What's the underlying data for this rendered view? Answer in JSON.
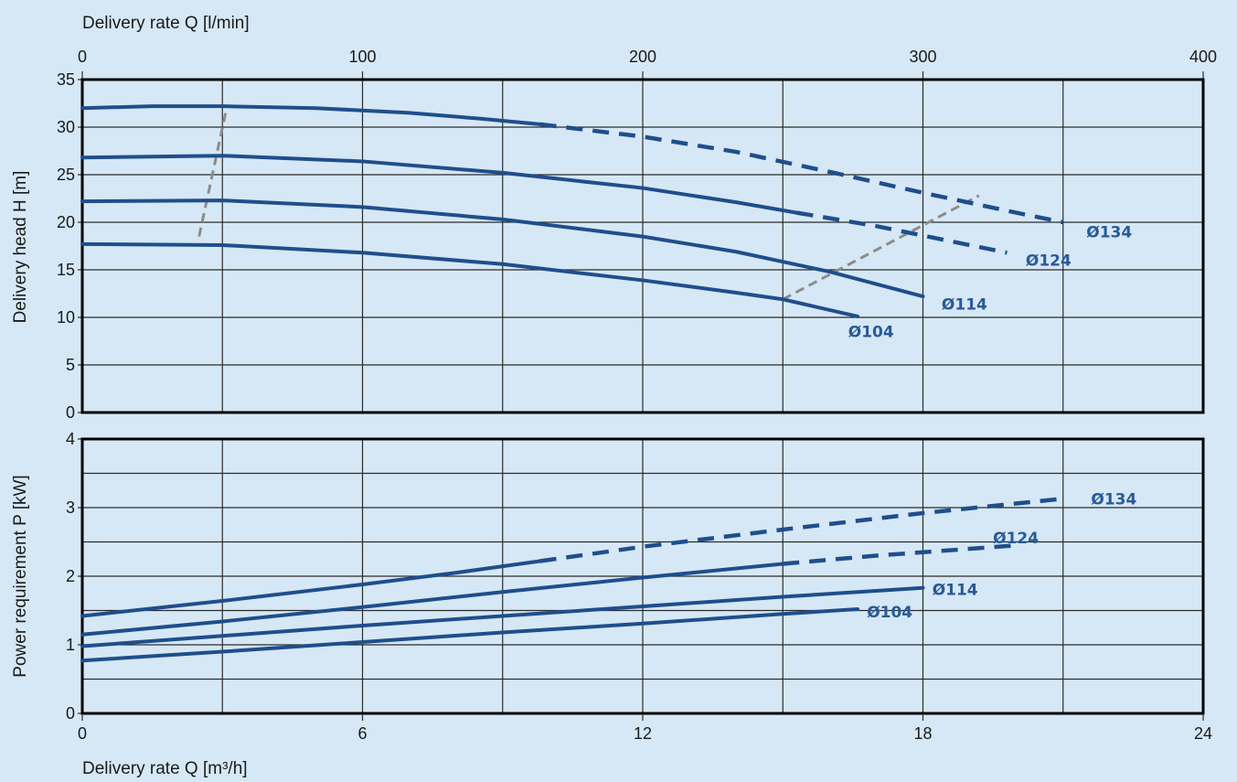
{
  "chart_data": [
    {
      "id": "head",
      "type": "line",
      "ylabel": "Delivery head  H [m]",
      "ylim": [
        0,
        35
      ],
      "yticks": [
        "0",
        "5",
        "10",
        "15",
        "20",
        "25",
        "30",
        "35"
      ],
      "xlim_m3h": [
        0,
        24
      ],
      "series": [
        {
          "name": "Ø134",
          "solid": [
            [
              0,
              32.0
            ],
            [
              1.5,
              32.2
            ],
            [
              3,
              32.2
            ],
            [
              5,
              32.0
            ],
            [
              7,
              31.5
            ],
            [
              8.5,
              30.9
            ],
            [
              9.8,
              30.3
            ]
          ],
          "dashed": [
            [
              9.8,
              30.3
            ],
            [
              12,
              29.0
            ],
            [
              14,
              27.4
            ],
            [
              16,
              25.3
            ],
            [
              18,
              23.1
            ],
            [
              20,
              21.0
            ],
            [
              21,
              20.0
            ]
          ]
        },
        {
          "name": "Ø124",
          "solid": [
            [
              0,
              26.8
            ],
            [
              3,
              27.0
            ],
            [
              6,
              26.4
            ],
            [
              9,
              25.2
            ],
            [
              12,
              23.6
            ],
            [
              14,
              22.1
            ],
            [
              15.3,
              21.0
            ]
          ],
          "dashed": [
            [
              15.3,
              21.0
            ],
            [
              17,
              19.6
            ],
            [
              18.5,
              18.1
            ],
            [
              19.8,
              16.8
            ]
          ]
        },
        {
          "name": "Ø114",
          "solid": [
            [
              0,
              22.2
            ],
            [
              3,
              22.3
            ],
            [
              6,
              21.6
            ],
            [
              9,
              20.3
            ],
            [
              12,
              18.5
            ],
            [
              14,
              16.9
            ],
            [
              16,
              14.8
            ],
            [
              18,
              12.2
            ]
          ],
          "dashed": []
        },
        {
          "name": "Ø104",
          "solid": [
            [
              0,
              17.7
            ],
            [
              3,
              17.6
            ],
            [
              6,
              16.8
            ],
            [
              9,
              15.6
            ],
            [
              12,
              13.9
            ],
            [
              14,
              12.6
            ],
            [
              15,
              11.9
            ],
            [
              16.6,
              10.1
            ]
          ],
          "dashed": []
        }
      ],
      "reference_lines": [
        [
          [
            2.5,
            18.5
          ],
          [
            3.1,
            32.2
          ]
        ],
        [
          [
            15,
            11.9
          ],
          [
            19.2,
            22.8
          ]
        ]
      ],
      "labels": [
        {
          "text": "Ø134",
          "at": [
            21.5,
            19.0
          ]
        },
        {
          "text": "Ø124",
          "at": [
            20.2,
            16.0
          ]
        },
        {
          "text": "Ø114",
          "at": [
            18.4,
            11.4
          ]
        },
        {
          "text": "Ø104",
          "at": [
            16.4,
            8.5
          ]
        }
      ]
    },
    {
      "id": "power",
      "type": "line",
      "ylabel": "Power requirement  P [kW]",
      "ylim": [
        0,
        4
      ],
      "yticks": [
        "0",
        "1",
        "2",
        "3",
        "4"
      ],
      "xlim_m3h": [
        0,
        24
      ],
      "series": [
        {
          "name": "Ø134",
          "solid": [
            [
              0,
              1.42
            ],
            [
              3,
              1.64
            ],
            [
              6,
              1.88
            ],
            [
              8,
              2.05
            ],
            [
              9.8,
              2.22
            ]
          ],
          "dashed": [
            [
              9.8,
              2.22
            ],
            [
              12,
              2.43
            ],
            [
              15,
              2.68
            ],
            [
              18,
              2.92
            ],
            [
              21,
              3.13
            ]
          ]
        },
        {
          "name": "Ø124",
          "solid": [
            [
              0,
              1.15
            ],
            [
              3,
              1.34
            ],
            [
              6,
              1.55
            ],
            [
              9,
              1.77
            ],
            [
              12,
              1.98
            ],
            [
              15,
              2.18
            ]
          ],
          "dashed": [
            [
              15,
              2.18
            ],
            [
              17,
              2.3
            ],
            [
              19,
              2.4
            ],
            [
              20,
              2.45
            ]
          ]
        },
        {
          "name": "Ø114",
          "solid": [
            [
              0,
              0.98
            ],
            [
              3,
              1.13
            ],
            [
              6,
              1.28
            ],
            [
              9,
              1.42
            ],
            [
              12,
              1.56
            ],
            [
              15,
              1.7
            ],
            [
              18,
              1.83
            ]
          ],
          "dashed": []
        },
        {
          "name": "Ø104",
          "solid": [
            [
              0,
              0.77
            ],
            [
              3,
              0.9
            ],
            [
              6,
              1.04
            ],
            [
              9,
              1.18
            ],
            [
              12,
              1.31
            ],
            [
              15,
              1.45
            ],
            [
              16.6,
              1.52
            ]
          ],
          "dashed": []
        }
      ],
      "reference_lines": [],
      "labels": [
        {
          "text": "Ø134",
          "at": [
            21.6,
            3.13
          ]
        },
        {
          "text": "Ø124",
          "at": [
            19.5,
            2.56
          ]
        },
        {
          "text": "Ø114",
          "at": [
            18.2,
            1.81
          ]
        },
        {
          "text": "Ø104",
          "at": [
            16.8,
            1.48
          ]
        }
      ]
    }
  ],
  "x_axis_top": {
    "label": "Delivery rate  Q [l/min]",
    "ticks": [
      "0",
      "100",
      "200",
      "300",
      "400"
    ],
    "lim": [
      0,
      400
    ]
  },
  "x_axis_bottom": {
    "label": "Delivery rate Q [m³/h]",
    "ticks": [
      "0",
      "6",
      "12",
      "18",
      "24"
    ],
    "lim": [
      0,
      24
    ]
  },
  "colors": {
    "curve": "#1f4e8c",
    "reference": "#8c8c8c",
    "grid": "#2b2b2b",
    "label": "#2a5a96",
    "background": "#d6e8f5"
  }
}
